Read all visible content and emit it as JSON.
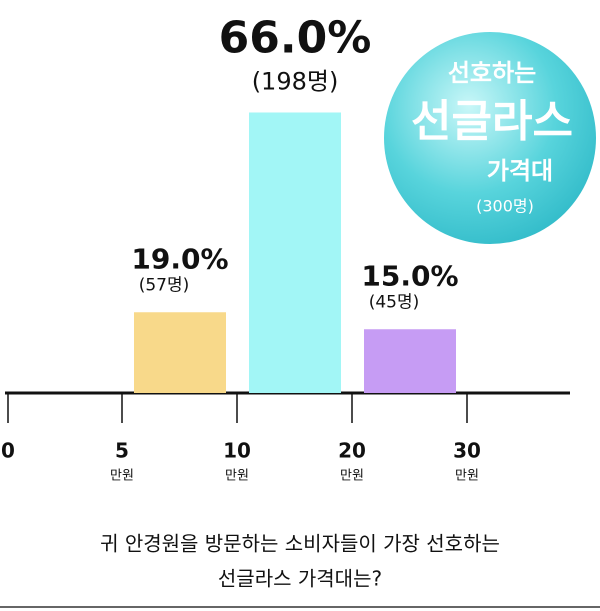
{
  "chart_data": {
    "type": "bar",
    "categories": [
      "5-10",
      "10-20",
      "20-30"
    ],
    "x_labels": [
      "0",
      "5",
      "10",
      "20",
      "30"
    ],
    "x_unit": "만원",
    "values": [
      19,
      66,
      15
    ],
    "value_labels": [
      "19.0%",
      "66.0%",
      "15.0%"
    ],
    "count_labels": [
      "(57명)",
      "(198명)",
      "(45명)"
    ],
    "colors": [
      "#f8d98a",
      "#a2f6f6",
      "#c69cf4"
    ],
    "badge": {
      "line1": "선호하는",
      "line2": "선글라스",
      "line3": "가격대",
      "line4": "(300명)"
    },
    "caption": [
      "귀 안경원을 방문하는 소비자들이 가장 선호하는",
      "선글라스 가격대는?"
    ]
  }
}
